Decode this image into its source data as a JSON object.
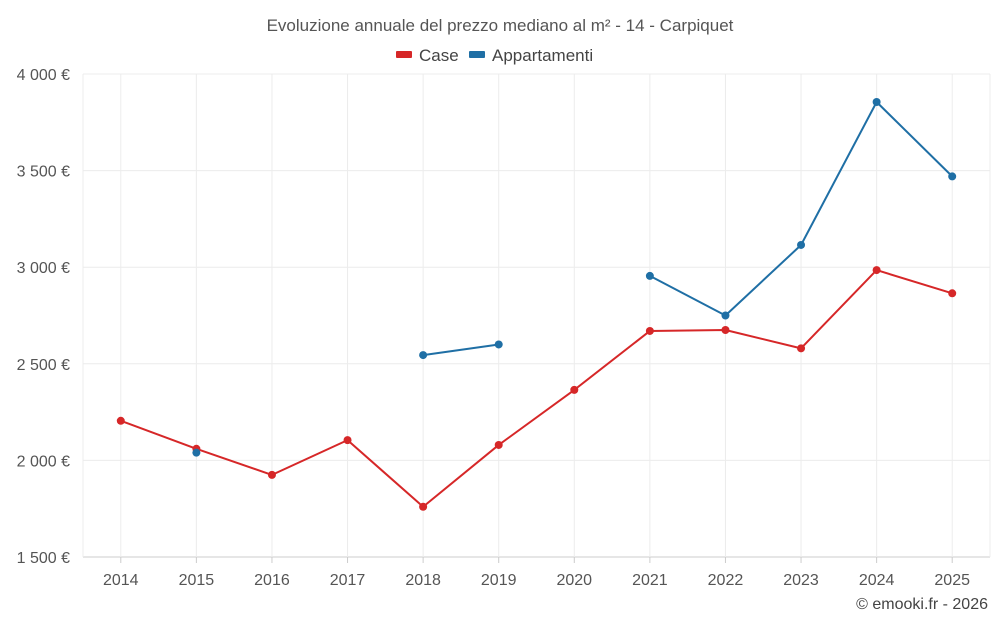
{
  "chart_data": {
    "type": "line",
    "title": "Evoluzione annuale del prezzo mediano al m² - 14 - Carpiquet",
    "categories": [
      "2014",
      "2015",
      "2016",
      "2017",
      "2018",
      "2019",
      "2020",
      "2021",
      "2022",
      "2023",
      "2024",
      "2025"
    ],
    "y_ticks": [
      1500,
      2000,
      2500,
      3000,
      3500,
      4000
    ],
    "y_tick_labels": [
      "1 500 €",
      "2 000 €",
      "2 500 €",
      "3 000 €",
      "3 500 €",
      "4 000 €"
    ],
    "ylim": [
      1500,
      4000
    ],
    "legend_position": "top-center",
    "grid": true,
    "xlabel": "",
    "ylabel": "",
    "series": [
      {
        "name": "Case",
        "color": "#d62728",
        "values": [
          2205,
          2060,
          1925,
          2105,
          1760,
          2080,
          2365,
          2670,
          2675,
          2580,
          2985,
          2865
        ]
      },
      {
        "name": "Appartamenti",
        "color": "#1f6fa5",
        "values": [
          null,
          2040,
          null,
          null,
          2545,
          2600,
          null,
          2955,
          2750,
          3115,
          3855,
          3470
        ]
      }
    ]
  },
  "credit": "© emooki.fr - 2026"
}
